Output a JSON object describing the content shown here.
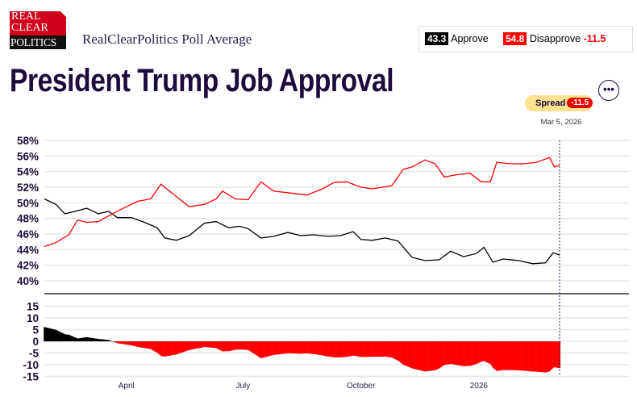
{
  "logo": {
    "line1": "REAL",
    "line2": "CLEAR",
    "line3": "POLITICS"
  },
  "header": {
    "subtitle": "RealClearPolitics Poll Average",
    "title": "President Trump Job Approval"
  },
  "legend": {
    "approve_value": "43.3",
    "approve_label": "Approve",
    "disapprove_value": "54.8",
    "disapprove_label": "Disapprove",
    "spread_value": "-11.5"
  },
  "spread_badge": {
    "label": "Spread",
    "value": "-11.5"
  },
  "current_date": "Mar 5, 2026",
  "more_button": "•••",
  "colors": {
    "approve": "#000000",
    "disapprove": "#ff0000",
    "title": "#1e0a3c",
    "badge": "#fbe28f"
  },
  "chart_data": [
    {
      "type": "line",
      "ylim": [
        40,
        58
      ],
      "yticks": [
        "58%",
        "56%",
        "54%",
        "52%",
        "50%",
        "48%",
        "46%",
        "44%",
        "42%",
        "40%"
      ],
      "grid": true,
      "xticks": [
        {
          "date": "2025-04-01",
          "label": "April"
        },
        {
          "date": "2025-07-01",
          "label": "July"
        },
        {
          "date": "2025-10-01",
          "label": "October"
        },
        {
          "date": "2026-01-01",
          "label": "2026"
        }
      ],
      "xlim": [
        "2025-01-27",
        "2026-03-05"
      ],
      "series": [
        {
          "name": "Approve",
          "color": "#000000",
          "points": [
            [
              "2025-01-27",
              50.5
            ],
            [
              "2025-02-05",
              49.8
            ],
            [
              "2025-02-12",
              48.6
            ],
            [
              "2025-02-20",
              48.9
            ],
            [
              "2025-03-01",
              49.3
            ],
            [
              "2025-03-10",
              48.6
            ],
            [
              "2025-03-18",
              48.9
            ],
            [
              "2025-03-25",
              48.1
            ],
            [
              "2025-04-05",
              48.1
            ],
            [
              "2025-04-15",
              47.5
            ],
            [
              "2025-04-25",
              46.8
            ],
            [
              "2025-05-01",
              45.5
            ],
            [
              "2025-05-10",
              45.2
            ],
            [
              "2025-05-20",
              45.8
            ],
            [
              "2025-06-01",
              47.4
            ],
            [
              "2025-06-10",
              47.6
            ],
            [
              "2025-06-20",
              46.8
            ],
            [
              "2025-06-28",
              47.0
            ],
            [
              "2025-07-05",
              46.7
            ],
            [
              "2025-07-15",
              45.5
            ],
            [
              "2025-07-25",
              45.7
            ],
            [
              "2025-08-05",
              46.2
            ],
            [
              "2025-08-15",
              45.8
            ],
            [
              "2025-08-25",
              45.9
            ],
            [
              "2025-09-05",
              45.7
            ],
            [
              "2025-09-15",
              45.8
            ],
            [
              "2025-09-25",
              46.3
            ],
            [
              "2025-10-01",
              45.3
            ],
            [
              "2025-10-10",
              45.2
            ],
            [
              "2025-10-20",
              45.5
            ],
            [
              "2025-10-30",
              45.1
            ],
            [
              "2025-11-10",
              43.0
            ],
            [
              "2025-11-20",
              42.6
            ],
            [
              "2025-12-01",
              42.7
            ],
            [
              "2025-12-10",
              43.8
            ],
            [
              "2025-12-20",
              43.1
            ],
            [
              "2025-12-30",
              43.5
            ],
            [
              "2026-01-05",
              44.3
            ],
            [
              "2026-01-12",
              42.4
            ],
            [
              "2026-01-20",
              42.8
            ],
            [
              "2026-02-01",
              42.6
            ],
            [
              "2026-02-12",
              42.2
            ],
            [
              "2026-02-22",
              42.3
            ],
            [
              "2026-02-28",
              43.6
            ],
            [
              "2026-03-05",
              43.3
            ]
          ]
        },
        {
          "name": "Disapprove",
          "color": "#ff0000",
          "points": [
            [
              "2025-01-27",
              44.4
            ],
            [
              "2025-02-05",
              44.9
            ],
            [
              "2025-02-15",
              45.9
            ],
            [
              "2025-02-22",
              47.8
            ],
            [
              "2025-03-01",
              47.5
            ],
            [
              "2025-03-10",
              47.6
            ],
            [
              "2025-03-20",
              48.5
            ],
            [
              "2025-04-01",
              49.5
            ],
            [
              "2025-04-10",
              50.2
            ],
            [
              "2025-04-20",
              50.5
            ],
            [
              "2025-04-28",
              52.4
            ],
            [
              "2025-05-10",
              50.8
            ],
            [
              "2025-05-20",
              49.5
            ],
            [
              "2025-06-01",
              49.8
            ],
            [
              "2025-06-10",
              50.5
            ],
            [
              "2025-06-15",
              51.5
            ],
            [
              "2025-06-25",
              50.5
            ],
            [
              "2025-07-05",
              50.4
            ],
            [
              "2025-07-15",
              52.7
            ],
            [
              "2025-07-25",
              51.5
            ],
            [
              "2025-08-05",
              51.3
            ],
            [
              "2025-08-20",
              51.0
            ],
            [
              "2025-09-01",
              51.8
            ],
            [
              "2025-09-10",
              52.6
            ],
            [
              "2025-09-20",
              52.7
            ],
            [
              "2025-10-01",
              52.0
            ],
            [
              "2025-10-10",
              51.8
            ],
            [
              "2025-10-25",
              52.2
            ],
            [
              "2025-11-03",
              54.3
            ],
            [
              "2025-11-10",
              54.6
            ],
            [
              "2025-11-20",
              55.5
            ],
            [
              "2025-11-28",
              55.0
            ],
            [
              "2025-12-05",
              53.3
            ],
            [
              "2025-12-15",
              53.6
            ],
            [
              "2025-12-25",
              53.8
            ],
            [
              "2026-01-03",
              52.7
            ],
            [
              "2026-01-10",
              52.7
            ],
            [
              "2026-01-15",
              55.2
            ],
            [
              "2026-01-25",
              55.0
            ],
            [
              "2026-02-05",
              55.0
            ],
            [
              "2026-02-15",
              55.2
            ],
            [
              "2026-02-25",
              55.8
            ],
            [
              "2026-03-01",
              54.6
            ],
            [
              "2026-03-05",
              54.8
            ]
          ]
        }
      ]
    },
    {
      "type": "bar",
      "title": "",
      "ylim": [
        -15,
        15
      ],
      "yticks": [
        "15",
        "10",
        "5",
        "0",
        "-5",
        "-10",
        "-15"
      ],
      "grid": true,
      "values_from": "Approve minus Disapprove",
      "positive_color": "#000000",
      "negative_color": "#ff0000"
    }
  ]
}
